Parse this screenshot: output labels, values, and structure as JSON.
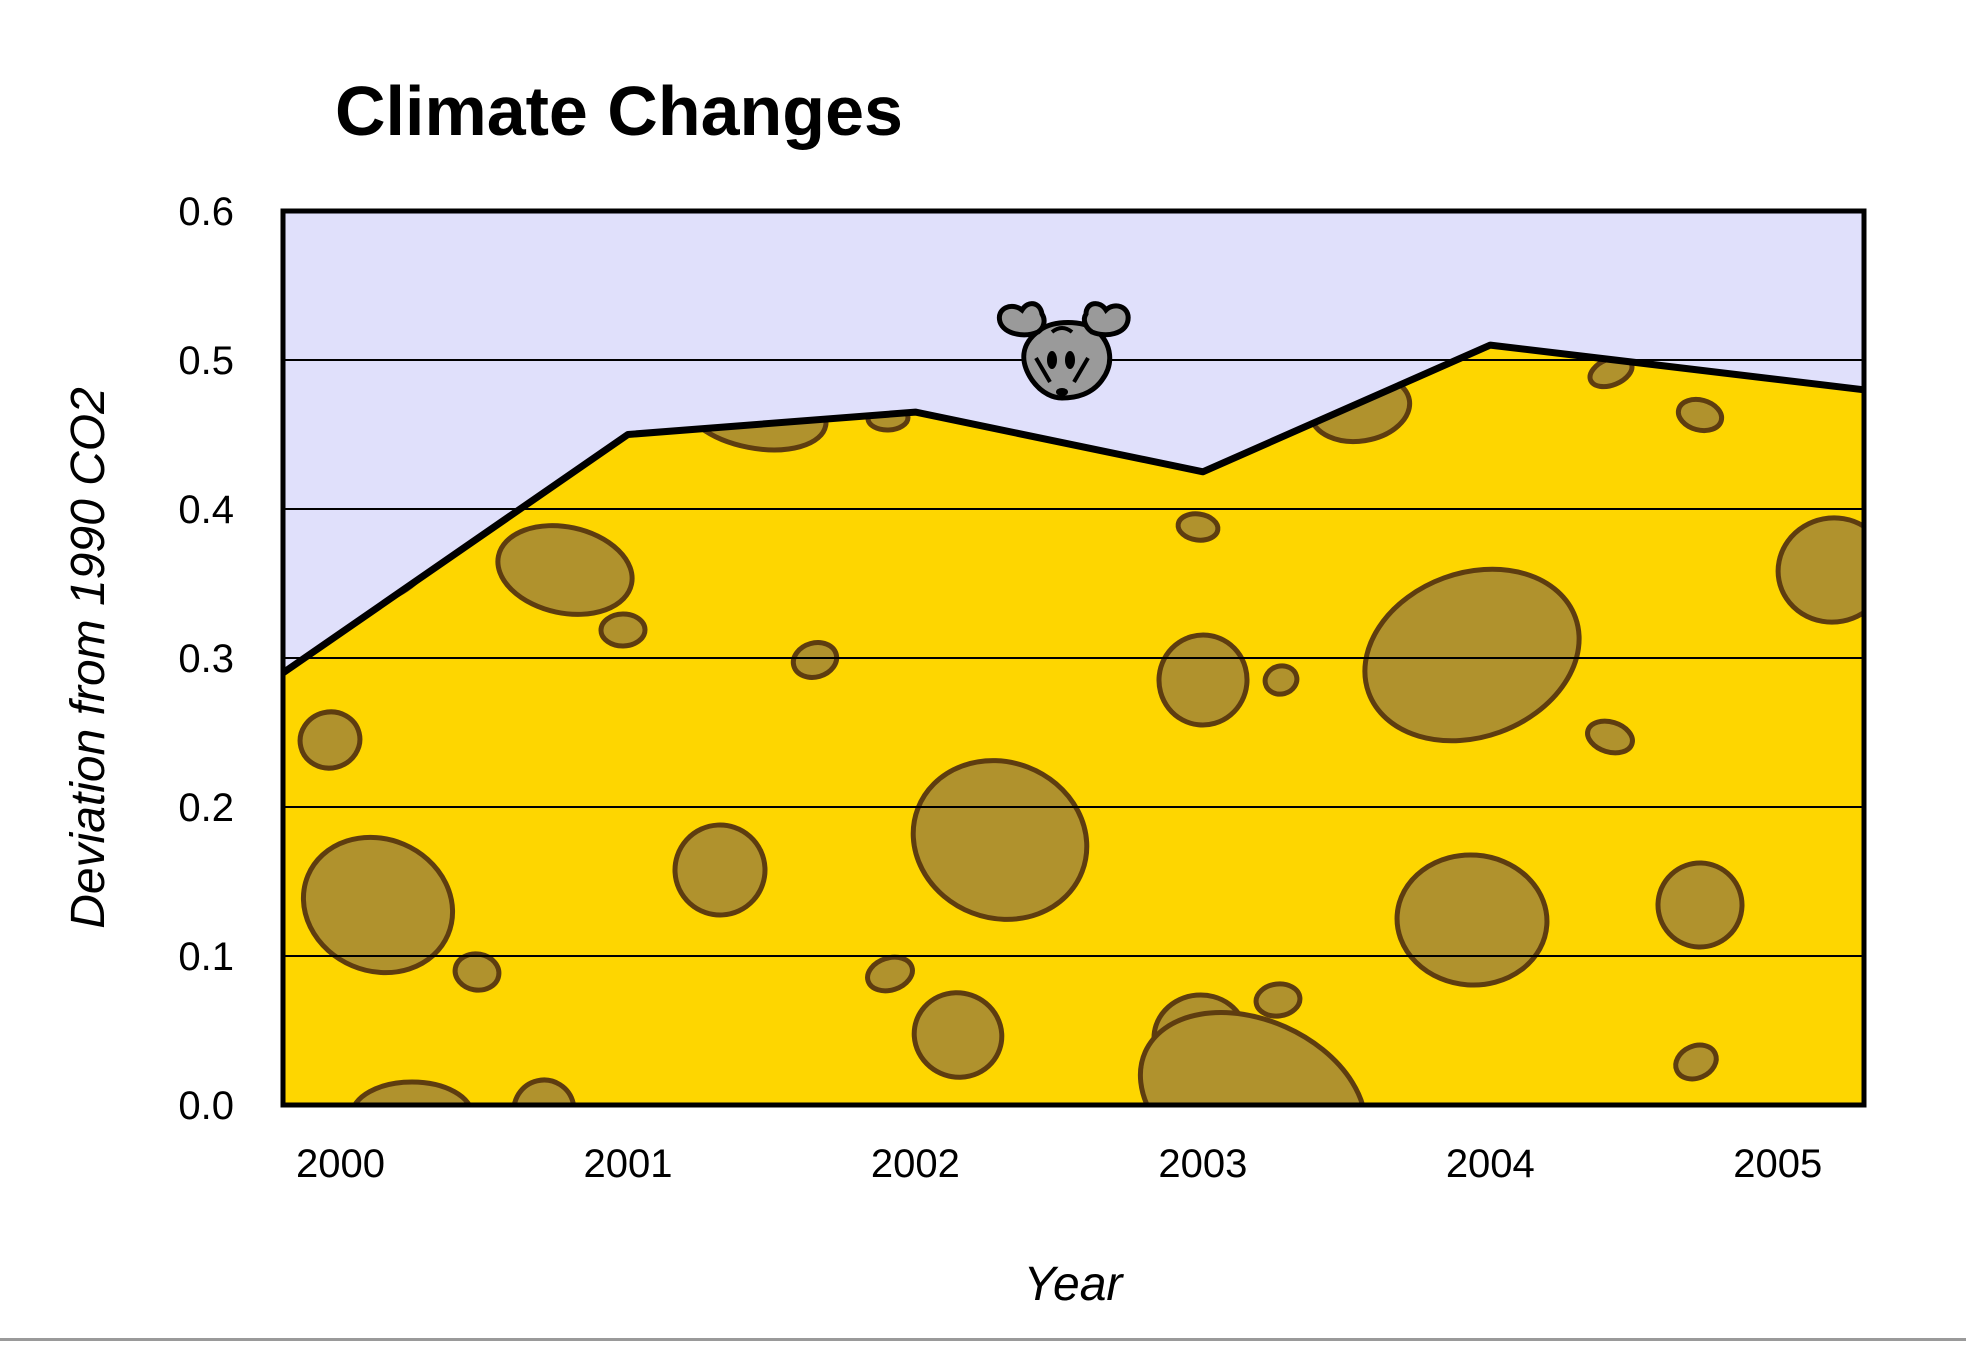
{
  "colors": {
    "sky": "#e0e0fb",
    "cheese": "#fed600",
    "hole_fill": "#b0922d",
    "hole_stroke": "#5e3d10",
    "mouse_fill": "#9a9a9a",
    "line": "#000000"
  },
  "icons": {
    "mascot": "mouse-icon"
  },
  "chart_data": {
    "type": "area",
    "title": "Climate Changes",
    "xlabel": "Year",
    "ylabel": "Deviation from 1990 CO2",
    "x": [
      1999.8,
      2001.0,
      2002.0,
      2003.0,
      2004.0,
      2005.3
    ],
    "values": [
      0.29,
      0.45,
      0.465,
      0.425,
      0.51,
      0.48
    ],
    "x_ticks": [
      2000,
      2001,
      2002,
      2003,
      2004,
      2005
    ],
    "y_ticks": [
      0.0,
      0.1,
      0.2,
      0.3,
      0.4,
      0.5,
      0.6
    ],
    "y_tick_labels": [
      "0.0",
      "0.1",
      "0.2",
      "0.3",
      "0.4",
      "0.5",
      "0.6"
    ],
    "xlim": [
      1999.8,
      2005.3
    ],
    "ylim": [
      0.0,
      0.6
    ],
    "grid": true,
    "legend": "none"
  }
}
